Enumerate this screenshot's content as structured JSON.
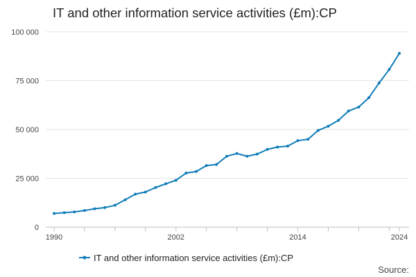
{
  "chart_data": {
    "type": "line",
    "title": "IT and other information service activities (£m):CP",
    "xlabel": "",
    "ylabel": "",
    "x": [
      1990,
      1991,
      1992,
      1993,
      1994,
      1995,
      1996,
      1997,
      1998,
      1999,
      2000,
      2001,
      2002,
      2003,
      2004,
      2005,
      2006,
      2007,
      2008,
      2009,
      2010,
      2011,
      2012,
      2013,
      2014,
      2015,
      2016,
      2017,
      2018,
      2019,
      2020,
      2021,
      2022,
      2023,
      2024
    ],
    "series": [
      {
        "name": "IT and other information service activities (£m):CP",
        "color": "#0f7cb9",
        "values": [
          7000,
          7400,
          7800,
          8500,
          9400,
          10000,
          11200,
          14000,
          16900,
          18000,
          20300,
          22200,
          24000,
          27700,
          28500,
          31500,
          32100,
          36300,
          37700,
          36300,
          37400,
          39800,
          41000,
          41500,
          44300,
          45000,
          49500,
          51700,
          54700,
          59500,
          61500,
          66300,
          73800,
          80700,
          89000
        ]
      }
    ],
    "ylim": [
      0,
      100000
    ],
    "yticks": [
      0,
      25000,
      50000,
      75000,
      100000
    ],
    "ytick_labels": [
      "0",
      "25 000",
      "50 000",
      "75 000",
      "100 000"
    ],
    "xlim": [
      1990,
      2024
    ],
    "xtick_labels": [
      {
        "year": 1990,
        "label": "1990"
      },
      {
        "year": 2002,
        "label": "2002"
      },
      {
        "year": 2014,
        "label": "2014"
      },
      {
        "year": 2024,
        "label": "2024"
      }
    ],
    "grid": true,
    "legend_position": "bottom"
  },
  "footer": {
    "source_label": "Source:"
  }
}
